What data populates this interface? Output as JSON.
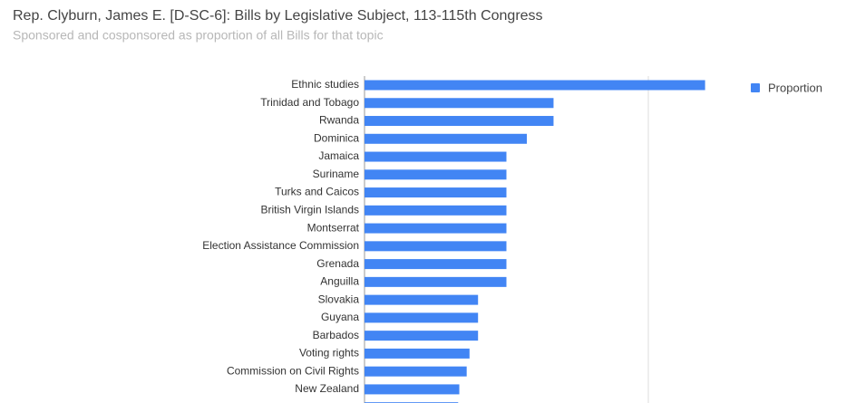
{
  "chart_data": {
    "type": "bar",
    "orientation": "horizontal",
    "title": "Rep. Clyburn, James E. [D-SC-6]: Bills by Legislative Subject, 113-115th Congress",
    "subtitle": "Sponsored and cosponsored as proportion of all Bills for that topic",
    "categories": [
      "Ethnic studies",
      "Trinidad and Tobago",
      "Rwanda",
      "Dominica",
      "Jamaica",
      "Suriname",
      "Turks and Caicos",
      "British Virgin Islands",
      "Montserrat",
      "Election Assistance Commission",
      "Grenada",
      "Anguilla",
      "Slovakia",
      "Guyana",
      "Barbados",
      "Voting rights",
      "Commission on Civil Rights",
      "New Zealand",
      null
    ],
    "series": [
      {
        "name": "Proportion",
        "color": "#4285f4",
        "values": [
          0.6,
          0.333,
          0.333,
          0.286,
          0.25,
          0.25,
          0.25,
          0.25,
          0.25,
          0.25,
          0.25,
          0.25,
          0.2,
          0.2,
          0.2,
          0.185,
          0.18,
          0.167,
          0.165
        ]
      }
    ],
    "xlim": [
      0,
      1
    ],
    "xticks": [
      0,
      0.5
    ],
    "show_tick_labels": false,
    "grid": true,
    "legend": "right"
  }
}
